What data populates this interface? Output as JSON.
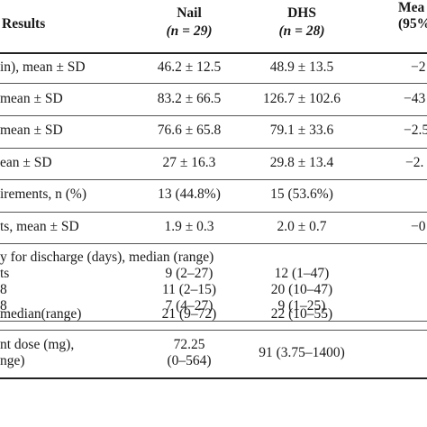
{
  "header": {
    "results": "Results",
    "nail_label": "Nail",
    "nail_n": "(n = 29)",
    "dhs_label": "DHS",
    "dhs_n": "(n = 28)",
    "mean_label": "Mea",
    "mean_ci": "(95%"
  },
  "rows": [
    {
      "label": "in), mean ± SD",
      "nail": "46.2 ± 12.5",
      "dhs": "48.9 ± 13.5",
      "mean": "−2"
    },
    {
      "label": "mean ± SD",
      "nail": "83.2 ± 66.5",
      "dhs": "126.7 ± 102.6",
      "mean": "−43"
    },
    {
      "label": "mean ± SD",
      "nail": "76.6 ± 65.8",
      "dhs": "79.1 ± 33.6",
      "mean": "−2.5"
    },
    {
      "label": "ean ± SD",
      "nail": "27 ± 16.3",
      "dhs": "29.8 ± 13.4",
      "mean": "−2."
    },
    {
      "label": "irements, n (%)",
      "nail": "13 (44.8%)",
      "dhs": "15 (53.6%)",
      "mean": ""
    },
    {
      "label": "ts, mean ± SD",
      "nail": "1.9 ± 0.3",
      "dhs": "2.0 ± 0.7",
      "mean": "−0"
    }
  ],
  "discharge": {
    "title": "y for discharge (days), median (range)",
    "lines": [
      {
        "label": "ts",
        "nail": "9 (2–27)",
        "dhs": "12 (1–47)"
      },
      {
        "label": "8",
        "nail": "11 (2–15)",
        "dhs": "20 (10–47)"
      },
      {
        "label": "8",
        "nail": "7 (4–27)",
        "dhs": "9 (1–25)"
      }
    ]
  },
  "median_row": {
    "label": "median(range)",
    "nail": "21 (9–72)",
    "dhs": "22 (10–55)"
  },
  "dose_row": {
    "label_line1": "nt dose (mg),",
    "label_line2": "nge)",
    "nail_line1": "72.25",
    "nail_line2": "(0–564)",
    "dhs": "91 (3.75–1400)"
  }
}
